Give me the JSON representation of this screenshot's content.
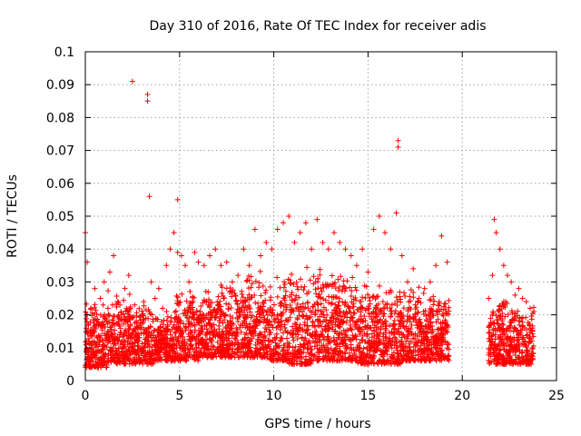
{
  "chart_data": {
    "type": "scatter",
    "title": "Day 310 of 2016, Rate Of TEC Index for receiver adis",
    "xlabel": "GPS time / hours",
    "ylabel": "ROTI / TECUs",
    "xlim": [
      0,
      25
    ],
    "ylim": [
      0,
      0.1
    ],
    "x_ticks": [
      0,
      5,
      10,
      15,
      20,
      25
    ],
    "x_tick_labels": [
      "0",
      "5",
      "10",
      "15",
      "20",
      "25"
    ],
    "y_ticks": [
      0,
      0.01,
      0.02,
      0.03,
      0.04,
      0.05,
      0.06,
      0.07,
      0.08,
      0.09,
      0.1
    ],
    "y_tick_labels": [
      "0",
      "0.01",
      "0.02",
      "0.03",
      "0.04",
      "0.05",
      "0.06",
      "0.07",
      "0.08",
      "0.09",
      "0.1"
    ],
    "grid": true,
    "marker": "plus",
    "color": "#ff0000",
    "series": [
      {
        "x": [
          0.0,
          0.1,
          0.1,
          0.2,
          0.3,
          0.4,
          0.5,
          0.6,
          0.8,
          1.0,
          1.2,
          1.3,
          1.5,
          1.7,
          1.9,
          2.1,
          2.3,
          2.5,
          2.7,
          2.9,
          3.1,
          3.3,
          3.3,
          3.4,
          3.5,
          3.7,
          3.9,
          4.1,
          4.3,
          4.5,
          4.7,
          4.9,
          4.9,
          5.1,
          5.3,
          5.5,
          5.8,
          6.0,
          6.3,
          6.6,
          6.9,
          7.2,
          7.5,
          7.8,
          8.1,
          8.4,
          8.7,
          9.0,
          9.3,
          9.6,
          9.9,
          10.2,
          10.5,
          10.8,
          11.1,
          11.4,
          11.7,
          12.0,
          12.3,
          12.6,
          12.9,
          13.2,
          13.5,
          13.8,
          14.1,
          14.4,
          14.7,
          15.0,
          15.3,
          15.6,
          15.9,
          16.2,
          16.5,
          16.6,
          16.6,
          16.8,
          17.1,
          17.4,
          17.7,
          18.0,
          18.3,
          18.6,
          18.9,
          19.2,
          21.4,
          21.6,
          21.7,
          21.8,
          22.0,
          22.2,
          22.4,
          22.6,
          22.8,
          23.0,
          23.2,
          23.4,
          23.6,
          23.8
        ],
        "y": [
          0.045,
          0.036,
          0.02,
          0.012,
          0.022,
          0.015,
          0.028,
          0.018,
          0.025,
          0.03,
          0.022,
          0.033,
          0.038,
          0.024,
          0.02,
          0.028,
          0.032,
          0.091,
          0.018,
          0.016,
          0.024,
          0.085,
          0.087,
          0.056,
          0.03,
          0.025,
          0.028,
          0.022,
          0.035,
          0.04,
          0.045,
          0.055,
          0.039,
          0.038,
          0.035,
          0.03,
          0.039,
          0.036,
          0.035,
          0.038,
          0.04,
          0.035,
          0.036,
          0.03,
          0.032,
          0.04,
          0.035,
          0.046,
          0.038,
          0.042,
          0.04,
          0.046,
          0.048,
          0.05,
          0.042,
          0.045,
          0.048,
          0.04,
          0.049,
          0.042,
          0.04,
          0.045,
          0.042,
          0.04,
          0.038,
          0.035,
          0.04,
          0.033,
          0.046,
          0.05,
          0.045,
          0.04,
          0.051,
          0.071,
          0.073,
          0.038,
          0.03,
          0.034,
          0.025,
          0.028,
          0.03,
          0.035,
          0.044,
          0.036,
          0.025,
          0.032,
          0.049,
          0.045,
          0.04,
          0.035,
          0.032,
          0.03,
          0.026,
          0.028,
          0.025,
          0.024,
          0.022,
          0.021
        ],
        "x_band_ranges": [
          [
            0.0,
            19.3
          ],
          [
            21.4,
            23.8
          ]
        ],
        "y_band_lower": [
          0.004,
          0.005,
          0.005,
          0.006,
          0.006,
          0.007,
          0.007,
          0.007,
          0.006,
          0.005,
          0.006,
          0.006,
          0.005,
          0.005,
          0.006,
          0.006,
          0.006,
          0.005,
          0.005,
          0.005
        ],
        "y_band_upper": [
          0.026,
          0.028,
          0.024,
          0.022,
          0.028,
          0.03,
          0.032,
          0.034,
          0.033,
          0.036,
          0.036,
          0.034,
          0.032,
          0.03,
          0.03,
          0.028,
          0.028,
          0.026,
          0.026,
          0.024
        ]
      }
    ]
  }
}
